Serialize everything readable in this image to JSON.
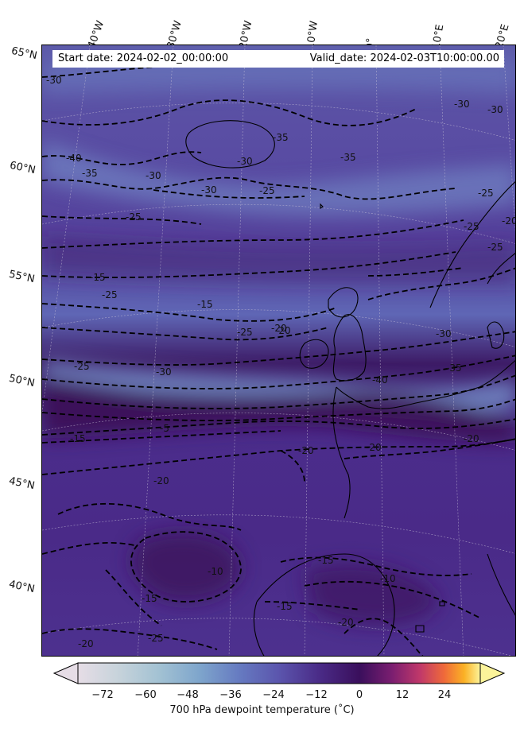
{
  "header": {
    "start_date": "Start date: 2024-02-02_00:00:00",
    "valid_date": "Valid_date: 2024-02-03T10:00:00.00"
  },
  "longitude_labels": [
    "40°W",
    "30°W",
    "20°W",
    "10°W",
    "0°",
    "10°E",
    "20°E"
  ],
  "latitude_labels": [
    "65°N",
    "60°N",
    "55°N",
    "50°N",
    "45°N",
    "40°N"
  ],
  "contour_labels": [
    "-30",
    "-40",
    "-35",
    "-30",
    "-25",
    "-30",
    "-35",
    "-30",
    "-35",
    "-30",
    "-25",
    "-20",
    "-25",
    "-15",
    "-25",
    "-15",
    "-20",
    "-25",
    "-30",
    "-40",
    "-25",
    "-30",
    "-35",
    "-20",
    "-5",
    "-15",
    "-20",
    "-20",
    "-20",
    "-10",
    "-15",
    "-10",
    "-15",
    "-15",
    "-20",
    "-20",
    "-25",
    "-25",
    "-20",
    "-30",
    "-25"
  ],
  "colorbar": {
    "title": "700 hPa dewpoint temperature (˚C)",
    "ticks": [
      "−72",
      "−60",
      "−48",
      "−36",
      "−24",
      "−12",
      "0",
      "12",
      "24"
    ],
    "range": [
      -84,
      36
    ],
    "colors": [
      "#e6dde6",
      "#c7d3db",
      "#93b8cf",
      "#6f92c8",
      "#5e63b4",
      "#4b2d8c",
      "#3a0f5c",
      "#7a1e70",
      "#c0386a",
      "#ef6a3a",
      "#fbb125",
      "#fcf49a"
    ]
  },
  "map": {
    "background_colors": [
      "#5b50a8",
      "#4b2d8c",
      "#6f8ec8",
      "#3f1a66"
    ]
  }
}
